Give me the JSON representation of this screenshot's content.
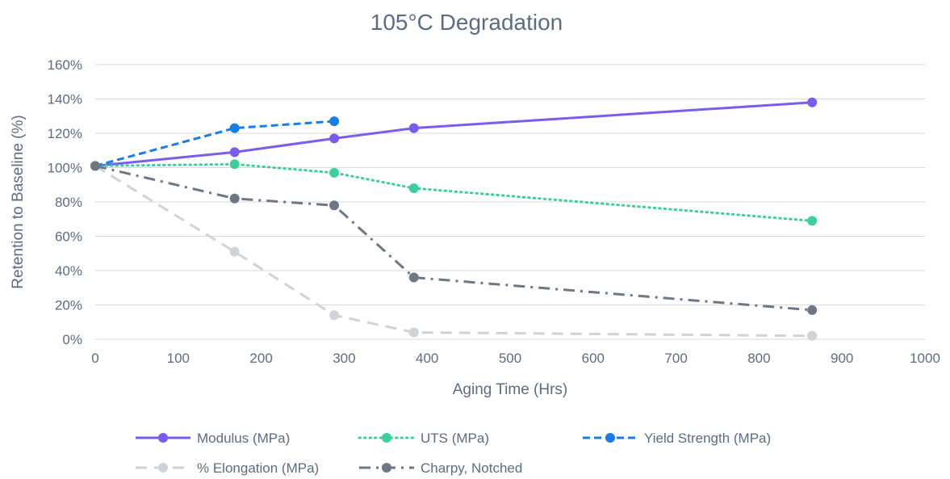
{
  "chart_data": {
    "type": "line",
    "title": "105°C Degradation",
    "xlabel": "Aging Time (Hrs)",
    "ylabel": "Retention to Baseline (%)",
    "xlim": [
      0,
      1000
    ],
    "ylim": [
      0,
      160
    ],
    "x_ticks": [
      "0",
      "100",
      "200",
      "300",
      "400",
      "500",
      "600",
      "700",
      "800",
      "900",
      "1000"
    ],
    "y_ticks": [
      "0%",
      "20%",
      "40%",
      "60%",
      "80%",
      "100%",
      "120%",
      "140%",
      "160%"
    ],
    "grid": "horizontal",
    "legend_position": "bottom",
    "series": [
      {
        "name": "Modulus (MPa)",
        "color": "#7a5cf0",
        "dash": "solid",
        "points": [
          [
            0,
            101
          ],
          [
            168,
            109
          ],
          [
            288,
            117
          ],
          [
            384,
            123
          ],
          [
            864,
            138
          ]
        ]
      },
      {
        "name": "UTS (MPa)",
        "color": "#3dcf9a",
        "dash": "dotted",
        "points": [
          [
            0,
            101
          ],
          [
            168,
            102
          ],
          [
            288,
            97
          ],
          [
            384,
            88
          ],
          [
            864,
            69
          ]
        ]
      },
      {
        "name": "Yield Strength (MPa)",
        "color": "#1a7de6",
        "dash": "dashed",
        "points": [
          [
            0,
            101
          ],
          [
            168,
            123
          ],
          [
            288,
            127
          ]
        ]
      },
      {
        "name": "% Elongation (MPa)",
        "color": "#cfd2d6",
        "dash": "longdash",
        "points": [
          [
            0,
            101
          ],
          [
            168,
            51
          ],
          [
            288,
            14
          ],
          [
            384,
            4
          ],
          [
            864,
            2
          ]
        ]
      },
      {
        "name": "Charpy, Notched",
        "color": "#6f7785",
        "dash": "dashdot",
        "points": [
          [
            0,
            101
          ],
          [
            168,
            82
          ],
          [
            288,
            78
          ],
          [
            384,
            36
          ],
          [
            864,
            17
          ]
        ]
      }
    ]
  }
}
